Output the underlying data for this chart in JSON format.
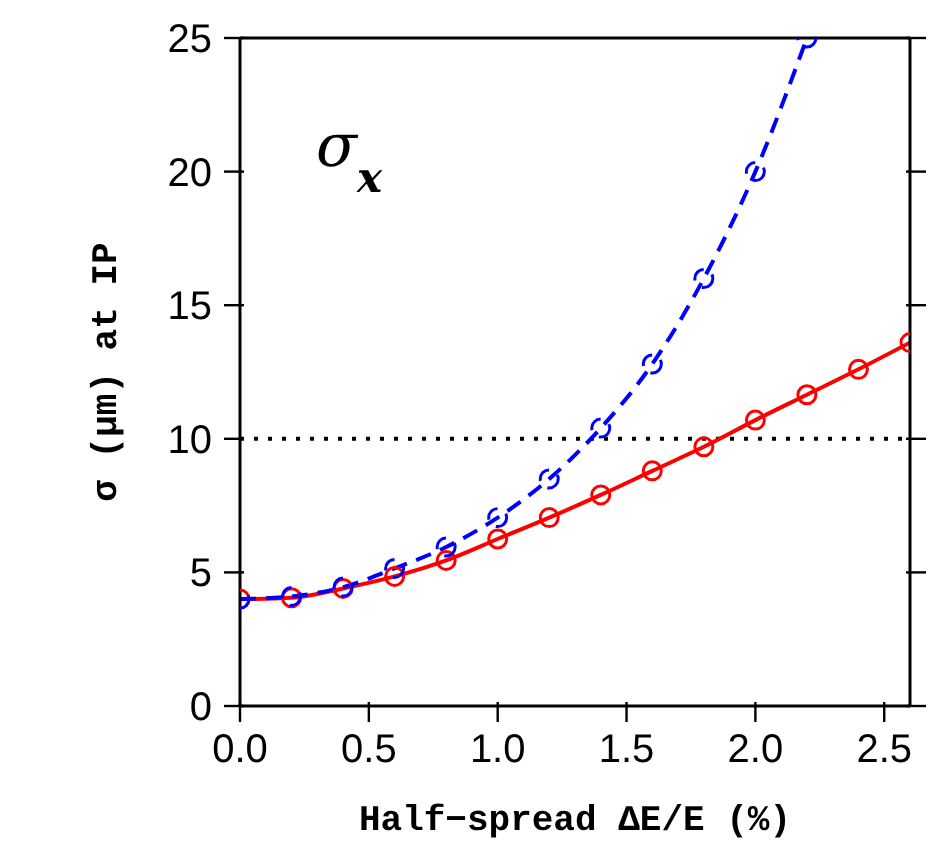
{
  "chart_data": {
    "type": "line",
    "xlabel": "Half−spread ΔE/E (%)",
    "ylabel": "σ (μm) at IP",
    "annotations": [
      "σ$_{x}$"
    ],
    "xlim": [
      0,
      2.6
    ],
    "xticks": [
      {
        "value": 0,
        "label": "0.0"
      },
      {
        "value": 0.5,
        "label": "0.5"
      },
      {
        "value": 1,
        "label": "1.0"
      },
      {
        "value": 1.5,
        "label": "1.5"
      },
      {
        "value": 2,
        "label": "2.0"
      },
      {
        "value": 2.5,
        "label": "2.5"
      }
    ],
    "ylim": [
      0,
      25
    ],
    "yticks": [
      0,
      5,
      10,
      15,
      20,
      25
    ],
    "marker": "circle",
    "ref_lines": [
      {
        "axis": "y",
        "value": 10,
        "color": "#000000",
        "line_style": "dotted"
      }
    ],
    "series": [
      {
        "color": "#0000ff",
        "line_style": "dashed",
        "x": [
          0,
          0.2,
          0.4,
          0.6,
          0.8,
          1.0,
          1.2,
          1.4,
          1.6,
          1.8,
          2.0,
          2.2
        ],
        "values": [
          4.0,
          4.1,
          4.45,
          5.15,
          5.95,
          7.05,
          8.5,
          10.4,
          12.8,
          16.0,
          20.0,
          25.0
        ]
      },
      {
        "color": "#ff0000",
        "line_style": "solid",
        "x": [
          0,
          0.2,
          0.4,
          0.6,
          0.8,
          1.0,
          1.2,
          1.4,
          1.6,
          1.8,
          2.0,
          2.2,
          2.4,
          2.6
        ],
        "values": [
          4.0,
          4.05,
          4.4,
          4.85,
          5.45,
          6.25,
          7.05,
          7.9,
          8.8,
          9.7,
          10.7,
          11.65,
          12.6,
          13.6
        ]
      }
    ]
  }
}
